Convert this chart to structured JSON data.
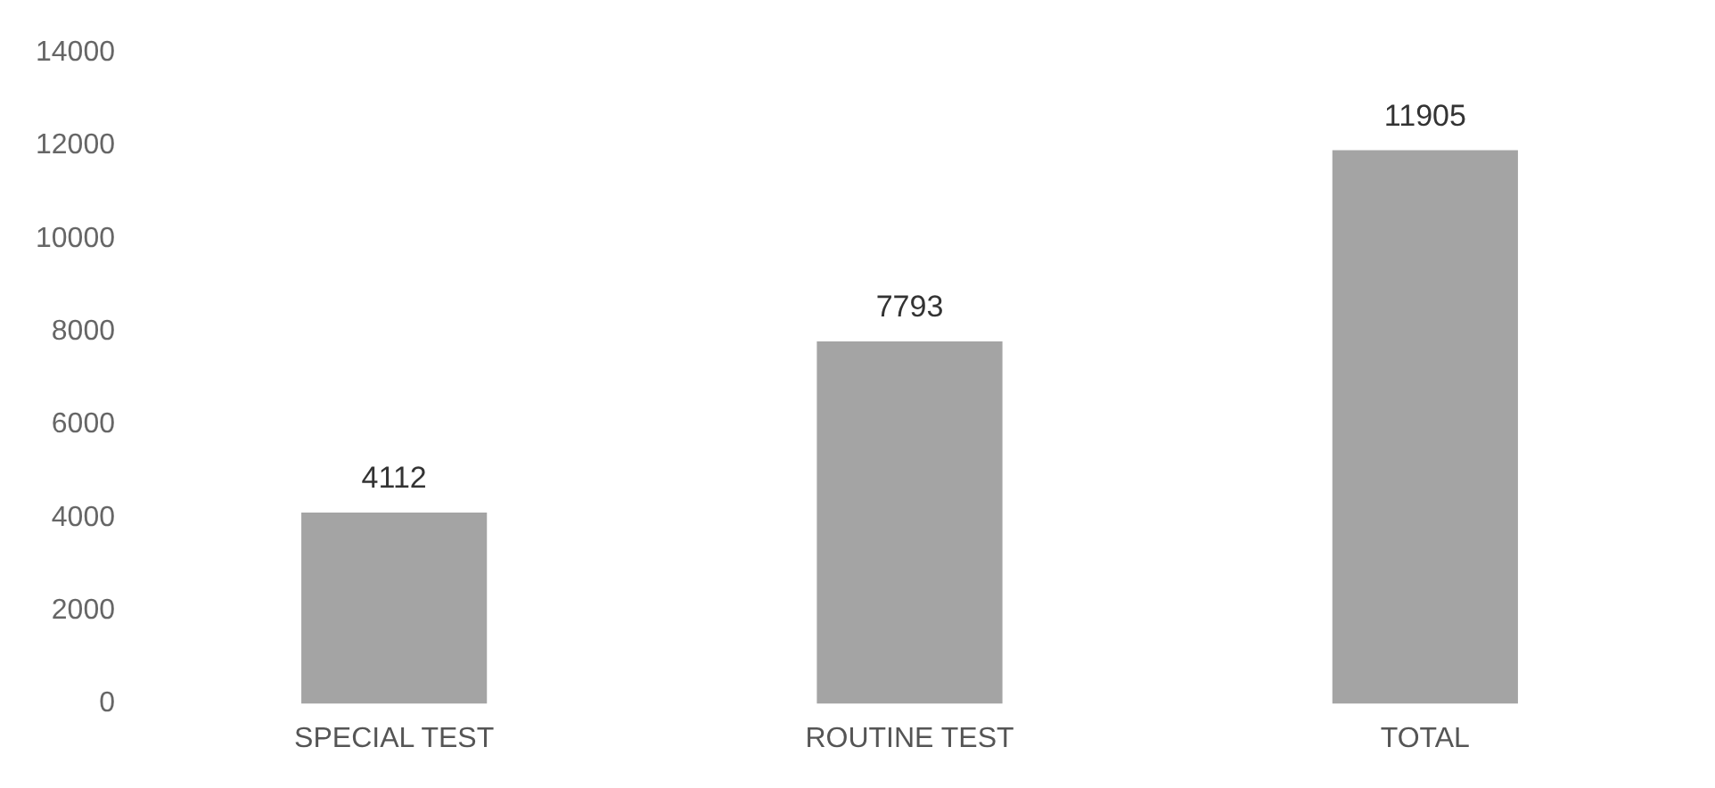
{
  "chart_data": {
    "type": "bar",
    "categories": [
      "SPECIAL TEST",
      "ROUTINE TEST",
      "TOTAL"
    ],
    "values": [
      4112,
      7793,
      11905
    ],
    "color": "#a4a4a4",
    "ylim": [
      0,
      14000
    ],
    "yticks": [
      0,
      2000,
      4000,
      6000,
      8000,
      10000,
      12000,
      14000
    ],
    "grid": false,
    "legend": false,
    "data_labels": true
  }
}
